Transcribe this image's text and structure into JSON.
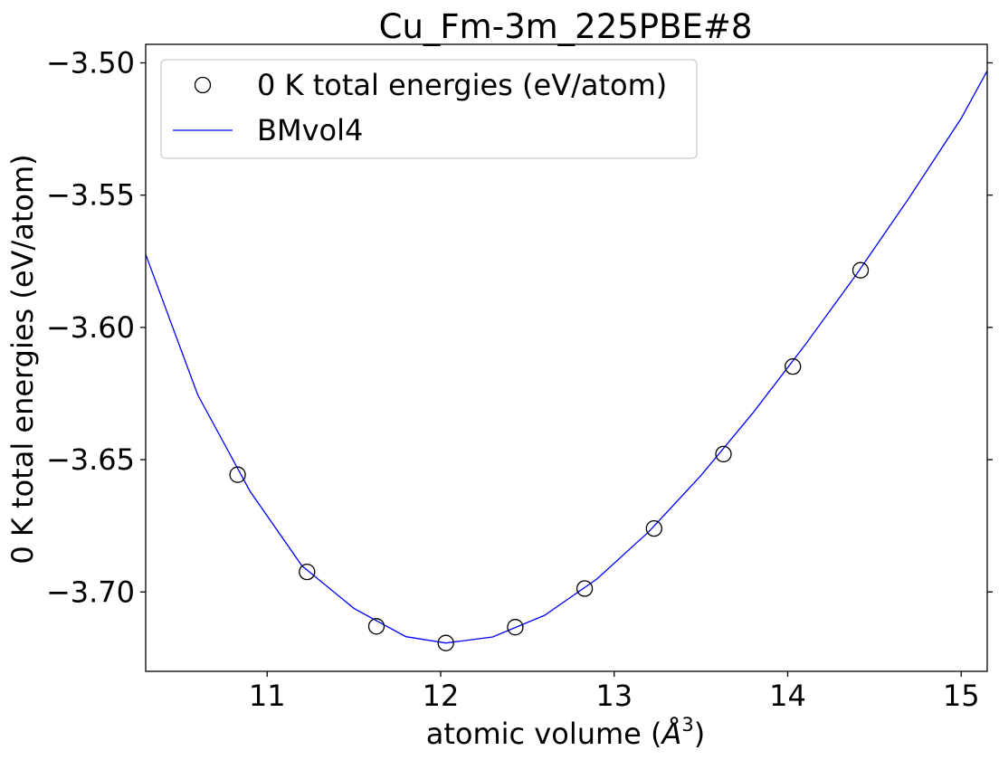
{
  "chart_data": {
    "type": "scatter",
    "title": "Cu_Fm-3m_225PBE#8",
    "xlabel": "atomic volume (",
    "xlabel_symbol": "Å",
    "xlabel_exponent": "3",
    "xlabel_close": ")",
    "ylabel": "0 K total energies (eV/atom)",
    "xlim": [
      10.3,
      15.15
    ],
    "ylim": [
      -3.73,
      -3.493
    ],
    "xticks": [
      11,
      12,
      13,
      14,
      15
    ],
    "xtick_labels": [
      "11",
      "12",
      "13",
      "14",
      "15"
    ],
    "yticks": [
      -3.7,
      -3.65,
      -3.6,
      -3.55,
      -3.5
    ],
    "ytick_labels": [
      "−3.70",
      "−3.65",
      "−3.60",
      "−3.55",
      "−3.50"
    ],
    "grid": false,
    "legend_position": "top-left",
    "series": [
      {
        "name": "0 K total energies (eV/atom)",
        "kind": "markers",
        "marker": "open-circle",
        "color": "#000000",
        "x": [
          10.83,
          11.23,
          11.63,
          12.03,
          12.43,
          12.83,
          13.23,
          13.63,
          14.03,
          14.42
        ],
        "y": [
          -3.6557,
          -3.6924,
          -3.713,
          -3.7193,
          -3.7133,
          -3.6987,
          -3.676,
          -3.6479,
          -3.6148,
          -3.5784
        ]
      },
      {
        "name": "BMvol4",
        "kind": "line",
        "color": "#0000ff",
        "x": [
          10.3,
          10.6,
          10.9,
          11.2,
          11.5,
          11.8,
          12.03,
          12.3,
          12.6,
          12.9,
          13.2,
          13.5,
          13.8,
          14.1,
          14.4,
          14.7,
          15.0,
          15.15
        ],
        "y": [
          -3.5724,
          -3.6255,
          -3.6618,
          -3.6901,
          -3.7062,
          -3.7169,
          -3.7193,
          -3.717,
          -3.7088,
          -3.6951,
          -3.6772,
          -3.656,
          -3.6323,
          -3.6066,
          -3.5796,
          -3.551,
          -3.521,
          -3.503
        ]
      }
    ]
  }
}
